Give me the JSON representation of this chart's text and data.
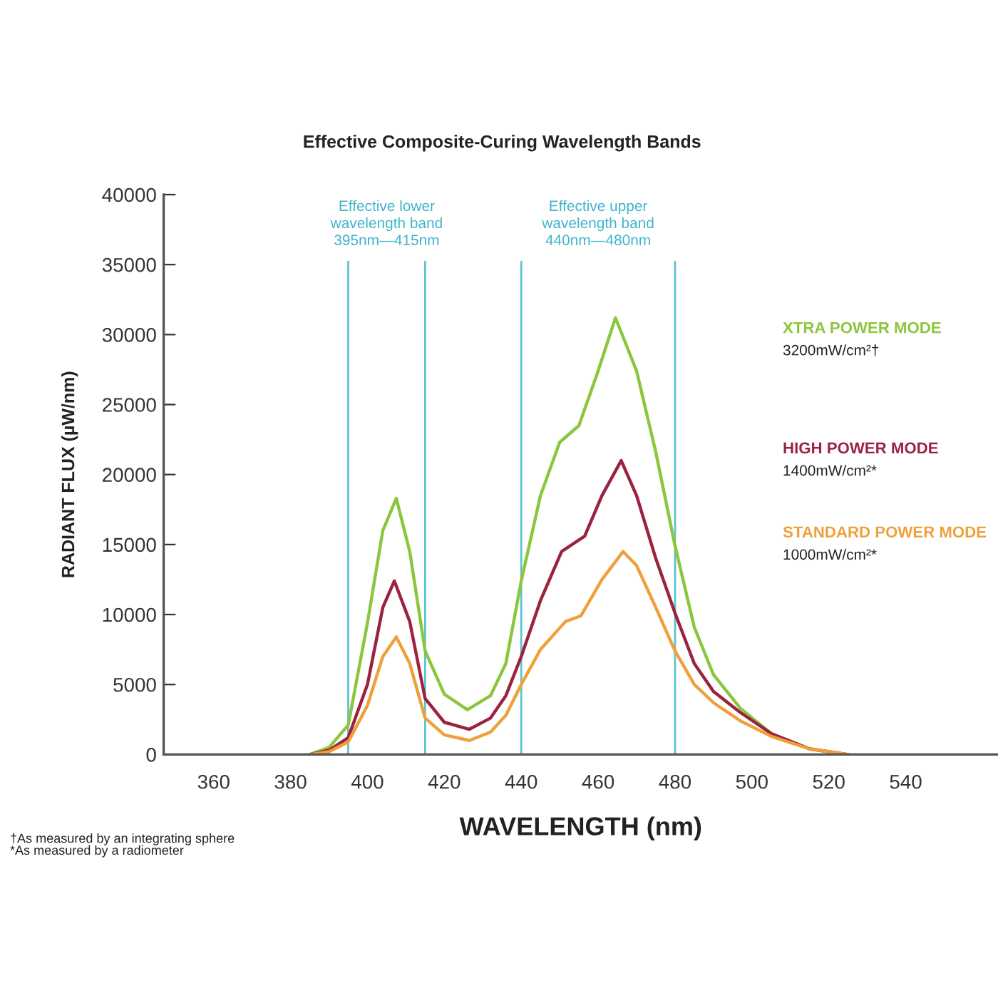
{
  "chart_data": {
    "type": "line",
    "title": "Effective Composite-Curing Wavelength Bands",
    "xlabel": "WAVELENGTH (nm)",
    "ylabel": "RADIANT FLUX (µW/nm)",
    "xlim": [
      347,
      564
    ],
    "xticks": [
      360,
      380,
      400,
      420,
      440,
      460,
      480,
      500,
      520,
      540
    ],
    "ylim": [
      0,
      40000
    ],
    "yticks": [
      0,
      5000,
      10000,
      15000,
      20000,
      25000,
      30000,
      35000,
      40000
    ],
    "legend": "right",
    "marker": "none",
    "line_style": "solid",
    "ref_lines": [
      {
        "axis": "x",
        "value": 395,
        "color": "#5bc3d6"
      },
      {
        "axis": "x",
        "value": 415,
        "color": "#5bc3d6"
      },
      {
        "axis": "x",
        "value": 440,
        "color": "#5bc3d6"
      },
      {
        "axis": "x",
        "value": 480,
        "color": "#5bc3d6"
      }
    ],
    "series": [
      {
        "name": "XTRA POWER MODE",
        "color": "#8cc63f",
        "x": [
          385,
          390,
          395,
          400,
          404,
          407.5,
          411,
          415,
          420,
          426,
          432,
          436,
          440,
          445,
          450,
          455,
          460,
          464.5,
          470,
          475,
          480,
          485,
          490,
          497,
          505,
          515,
          525
        ],
        "values": [
          0,
          500,
          2100,
          9400,
          16000,
          18300,
          14500,
          7400,
          4300,
          3200,
          4200,
          6500,
          12400,
          18500,
          22300,
          23500,
          27400,
          31200,
          27400,
          21600,
          14900,
          9100,
          5700,
          3300,
          1500,
          400,
          0
        ]
      },
      {
        "name": "HIGH POWER MODE",
        "color": "#9b2340",
        "x": [
          385,
          390,
          395,
          400,
          404,
          407,
          411,
          415,
          420,
          426.5,
          432,
          436,
          440,
          445,
          450.5,
          456.5,
          461,
          466,
          470,
          475,
          480,
          485,
          490,
          497,
          505,
          515,
          525
        ],
        "values": [
          0,
          300,
          1200,
          5000,
          10500,
          12400,
          9500,
          4000,
          2300,
          1800,
          2600,
          4200,
          7000,
          11000,
          14500,
          15600,
          18500,
          21000,
          18500,
          14000,
          10100,
          6500,
          4500,
          3000,
          1500,
          400,
          0
        ]
      },
      {
        "name": "STANDARD POWER MODE",
        "color": "#eea13a",
        "x": [
          385,
          390,
          395,
          400,
          404,
          407.5,
          411,
          415,
          420,
          426.5,
          432,
          436,
          440,
          445,
          451.5,
          455.5,
          461,
          466.5,
          470,
          475,
          480,
          485,
          490,
          497,
          505,
          515,
          525
        ],
        "values": [
          0,
          200,
          900,
          3500,
          7000,
          8400,
          6500,
          2600,
          1400,
          1000,
          1600,
          2800,
          5000,
          7500,
          9500,
          9900,
          12500,
          14500,
          13500,
          10500,
          7400,
          5000,
          3700,
          2400,
          1300,
          400,
          0
        ]
      }
    ],
    "annotations": [
      "3200mW/cm²†",
      "1400mW/cm²*",
      "1000mW/cm²*",
      "†As measured by an integrating sphere\n*As measured by a radiometer",
      "Effective lower\nwavelength band\n395nm—415nm",
      "Effective upper\nwavelength band\n440nm—480nm"
    ]
  }
}
